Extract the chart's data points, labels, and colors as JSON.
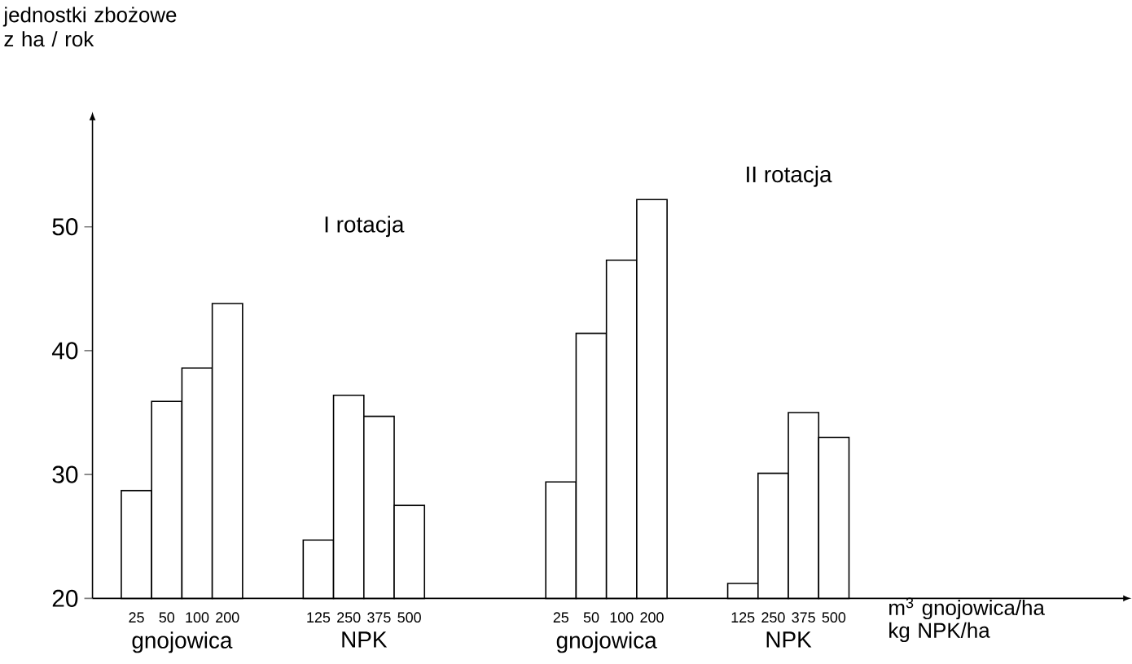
{
  "chart_data": {
    "type": "bar",
    "ylabel": "jednostki zbożowe z ha / rok",
    "xlabel": "m$^{3}$ gnojowica/ha kg NPK/ha",
    "categories": [
      "25",
      "50",
      "100",
      "200",
      "125",
      "250",
      "375",
      "500",
      "25",
      "50",
      "100",
      "200",
      "125",
      "250",
      "375",
      "500"
    ],
    "values": [
      28.7,
      35.9,
      38.6,
      43.8,
      24.7,
      36.4,
      34.7,
      27.5,
      29.4,
      41.4,
      47.3,
      52.2,
      21.2,
      30.1,
      35.0,
      33.0
    ],
    "color": "#ffffff",
    "ylim": [
      20,
      58.5
    ],
    "yticks": [
      20,
      30,
      40,
      50
    ],
    "grid": false,
    "annotations": [
      "I rotacja",
      "II rotacja",
      "gnojowica",
      "NPK",
      "gnojowica",
      "NPK"
    ]
  }
}
